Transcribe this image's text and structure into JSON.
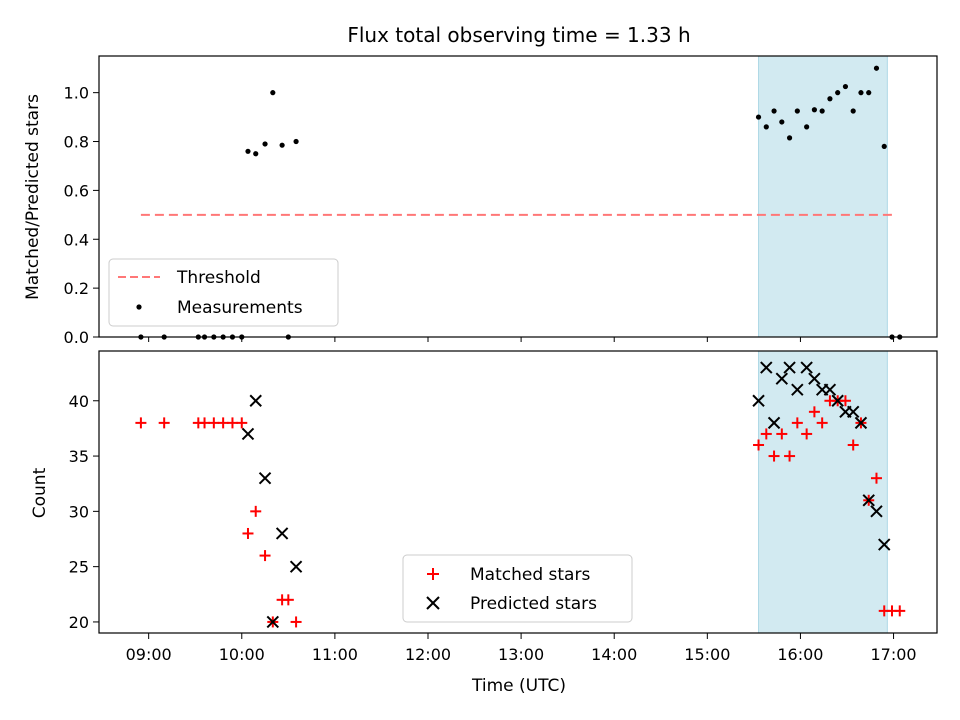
{
  "figure_title": "Flux total observing time = 1.33 h",
  "chart_data": [
    {
      "type": "scatter",
      "title": "Flux total observing time = 1.33 h",
      "xlabel": "",
      "ylabel": "Matched/Predicted stars",
      "xlim": [
        "08:28",
        "17:28"
      ],
      "ylim": [
        0,
        1.15
      ],
      "yticks": [
        "0.0",
        "0.2",
        "0.4",
        "0.6",
        "0.8",
        "1.0"
      ],
      "grid": false,
      "legend_location": "lower left",
      "shaded_interval": {
        "from": "15:33",
        "to": "16:56",
        "color": "#add8e6"
      },
      "threshold": {
        "name": "Threshold",
        "value": 0.5,
        "from": "08:55",
        "to": "17:02",
        "color": "#ff7777",
        "style": "dashed"
      },
      "series": [
        {
          "name": "Measurements",
          "color": "#000000",
          "marker": "dot",
          "points": [
            {
              "x": "08:55",
              "y": 0.0
            },
            {
              "x": "09:10",
              "y": 0.0
            },
            {
              "x": "09:32",
              "y": 0.0
            },
            {
              "x": "09:36",
              "y": 0.0
            },
            {
              "x": "09:42",
              "y": 0.0
            },
            {
              "x": "09:48",
              "y": 0.0
            },
            {
              "x": "09:54",
              "y": 0.0
            },
            {
              "x": "10:00",
              "y": 0.0
            },
            {
              "x": "10:04",
              "y": 0.76
            },
            {
              "x": "10:09",
              "y": 0.75
            },
            {
              "x": "10:15",
              "y": 0.79
            },
            {
              "x": "10:20",
              "y": 1.0
            },
            {
              "x": "10:26",
              "y": 0.785
            },
            {
              "x": "10:30",
              "y": 0.0
            },
            {
              "x": "10:35",
              "y": 0.8
            },
            {
              "x": "15:33",
              "y": 0.9
            },
            {
              "x": "15:38",
              "y": 0.86
            },
            {
              "x": "15:43",
              "y": 0.925
            },
            {
              "x": "15:48",
              "y": 0.88
            },
            {
              "x": "15:53",
              "y": 0.815
            },
            {
              "x": "15:58",
              "y": 0.925
            },
            {
              "x": "16:04",
              "y": 0.86
            },
            {
              "x": "16:09",
              "y": 0.93
            },
            {
              "x": "16:14",
              "y": 0.925
            },
            {
              "x": "16:19",
              "y": 0.975
            },
            {
              "x": "16:24",
              "y": 1.0
            },
            {
              "x": "16:29",
              "y": 1.025
            },
            {
              "x": "16:34",
              "y": 0.925
            },
            {
              "x": "16:39",
              "y": 1.0
            },
            {
              "x": "16:44",
              "y": 1.0
            },
            {
              "x": "16:49",
              "y": 1.1
            },
            {
              "x": "16:54",
              "y": 0.78
            },
            {
              "x": "16:59",
              "y": 0.0
            },
            {
              "x": "17:04",
              "y": 0.0
            }
          ]
        }
      ]
    },
    {
      "type": "scatter",
      "title": "",
      "xlabel": "Time (UTC)",
      "ylabel": "Count",
      "xlim": [
        "08:28",
        "17:28"
      ],
      "ylim": [
        19,
        44.5
      ],
      "xticks": [
        "09:00",
        "10:00",
        "11:00",
        "12:00",
        "13:00",
        "14:00",
        "15:00",
        "16:00",
        "17:00"
      ],
      "yticks": [
        "20",
        "25",
        "30",
        "35",
        "40"
      ],
      "grid": false,
      "legend_location": "lower center",
      "shaded_interval": {
        "from": "15:33",
        "to": "16:56",
        "color": "#add8e6"
      },
      "series": [
        {
          "name": "Matched stars",
          "color": "#ff0000",
          "marker": "plus",
          "points": [
            {
              "x": "08:55",
              "y": 38
            },
            {
              "x": "09:10",
              "y": 38
            },
            {
              "x": "09:32",
              "y": 38
            },
            {
              "x": "09:36",
              "y": 38
            },
            {
              "x": "09:42",
              "y": 38
            },
            {
              "x": "09:48",
              "y": 38
            },
            {
              "x": "09:54",
              "y": 38
            },
            {
              "x": "10:00",
              "y": 38
            },
            {
              "x": "10:04",
              "y": 28
            },
            {
              "x": "10:09",
              "y": 30
            },
            {
              "x": "10:15",
              "y": 26
            },
            {
              "x": "10:20",
              "y": 20
            },
            {
              "x": "10:26",
              "y": 22
            },
            {
              "x": "10:30",
              "y": 22
            },
            {
              "x": "10:35",
              "y": 20
            },
            {
              "x": "15:33",
              "y": 36
            },
            {
              "x": "15:38",
              "y": 37
            },
            {
              "x": "15:43",
              "y": 35
            },
            {
              "x": "15:48",
              "y": 37
            },
            {
              "x": "15:53",
              "y": 35
            },
            {
              "x": "15:58",
              "y": 38
            },
            {
              "x": "16:04",
              "y": 37
            },
            {
              "x": "16:09",
              "y": 39
            },
            {
              "x": "16:14",
              "y": 38
            },
            {
              "x": "16:19",
              "y": 40
            },
            {
              "x": "16:24",
              "y": 40
            },
            {
              "x": "16:29",
              "y": 40
            },
            {
              "x": "16:34",
              "y": 36
            },
            {
              "x": "16:39",
              "y": 38
            },
            {
              "x": "16:44",
              "y": 31
            },
            {
              "x": "16:49",
              "y": 33
            },
            {
              "x": "16:54",
              "y": 21
            },
            {
              "x": "16:59",
              "y": 21
            },
            {
              "x": "17:04",
              "y": 21
            }
          ]
        },
        {
          "name": "Predicted stars",
          "color": "#000000",
          "marker": "x",
          "points": [
            {
              "x": "10:04",
              "y": 37
            },
            {
              "x": "10:09",
              "y": 40
            },
            {
              "x": "10:15",
              "y": 33
            },
            {
              "x": "10:20",
              "y": 20
            },
            {
              "x": "10:26",
              "y": 28
            },
            {
              "x": "10:35",
              "y": 25
            },
            {
              "x": "15:33",
              "y": 40
            },
            {
              "x": "15:38",
              "y": 43
            },
            {
              "x": "15:43",
              "y": 38
            },
            {
              "x": "15:48",
              "y": 42
            },
            {
              "x": "15:53",
              "y": 43
            },
            {
              "x": "15:58",
              "y": 41
            },
            {
              "x": "16:04",
              "y": 43
            },
            {
              "x": "16:09",
              "y": 42
            },
            {
              "x": "16:14",
              "y": 41
            },
            {
              "x": "16:19",
              "y": 41
            },
            {
              "x": "16:24",
              "y": 40
            },
            {
              "x": "16:29",
              "y": 39
            },
            {
              "x": "16:34",
              "y": 39
            },
            {
              "x": "16:39",
              "y": 38
            },
            {
              "x": "16:44",
              "y": 31
            },
            {
              "x": "16:49",
              "y": 30
            },
            {
              "x": "16:54",
              "y": 27
            }
          ]
        }
      ]
    }
  ]
}
